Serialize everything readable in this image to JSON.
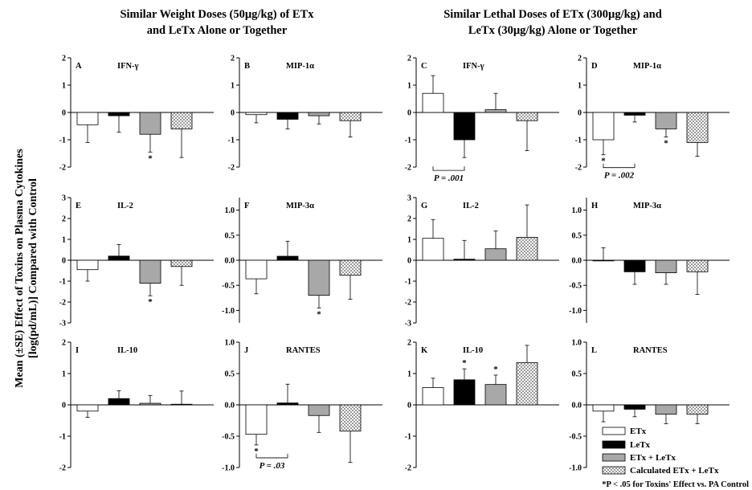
{
  "group_titles": [
    {
      "lines": [
        "Similar Weight Doses (50µg/kg) of ETx",
        "and LeTx  Alone or Together"
      ]
    },
    {
      "lines": [
        "Similar Lethal Doses of ETx (300µg/kg) and",
        "LeTx (30µg/kg) Alone or Together"
      ]
    }
  ],
  "ylabel_lines": [
    "Mean (±SE) Effect of Toxins on Plasma Cytokines",
    "[log(pd/mL)] Compared with Control"
  ],
  "legend": {
    "items": [
      "ETx",
      "LeTx",
      "ETx + LeTx",
      "Calculated ETx + LeTx"
    ],
    "footnote": "*P < .05 for Toxins' Effect vs. PA Control"
  },
  "colors": {
    "etx": "#ffffff",
    "letx": "#000000",
    "combined": "#a8a8a8",
    "calculated": "pattern-checker-light-gray",
    "axis": "#000000"
  },
  "chart_data": [
    {
      "panel": "A",
      "cytokine": "IFN-γ",
      "type": "bar",
      "ylim": [
        -2,
        2
      ],
      "ticks": [
        "-2",
        "-1",
        "0",
        "1",
        "2"
      ],
      "series": [
        {
          "name": "ETx",
          "value": -0.45,
          "err": 0.65
        },
        {
          "name": "LeTx",
          "value": -0.12,
          "err": 0.6
        },
        {
          "name": "ETx + LeTx",
          "value": -0.8,
          "err": 0.65
        },
        {
          "name": "Calculated ETx + LeTx",
          "value": -0.6,
          "err": 1.05
        }
      ],
      "stars": [
        2
      ],
      "pvalue": null
    },
    {
      "panel": "B",
      "cytokine": "MIP-1α",
      "type": "bar",
      "ylim": [
        -2,
        2
      ],
      "ticks": [
        "-2",
        "-1",
        "0",
        "1",
        "2"
      ],
      "series": [
        {
          "name": "ETx",
          "value": -0.08,
          "err": 0.3
        },
        {
          "name": "LeTx",
          "value": -0.25,
          "err": 0.35
        },
        {
          "name": "ETx + LeTx",
          "value": -0.12,
          "err": 0.3
        },
        {
          "name": "Calculated ETx + LeTx",
          "value": -0.3,
          "err": 0.6
        }
      ],
      "stars": [],
      "pvalue": null
    },
    {
      "panel": "C",
      "cytokine": "IFN-γ",
      "type": "bar",
      "ylim": [
        -2,
        2
      ],
      "ticks": [
        "-2",
        "-1",
        "0",
        "1",
        "2"
      ],
      "series": [
        {
          "name": "ETx",
          "value": 0.7,
          "err": 0.65
        },
        {
          "name": "LeTx",
          "value": -1.0,
          "err": 0.65
        },
        {
          "name": "ETx + LeTx",
          "value": 0.1,
          "err": 0.6
        },
        {
          "name": "Calculated ETx + LeTx",
          "value": -0.3,
          "err": 1.1
        }
      ],
      "stars": [],
      "pvalue": {
        "label": "P = .001",
        "from": 0,
        "to": 1
      }
    },
    {
      "panel": "D",
      "cytokine": "MIP-1α",
      "type": "bar",
      "ylim": [
        -2,
        2
      ],
      "ticks": [
        "-2",
        "-1",
        "0",
        "1",
        "2"
      ],
      "series": [
        {
          "name": "ETx",
          "value": -1.0,
          "err": 0.55
        },
        {
          "name": "LeTx",
          "value": -0.1,
          "err": 0.25
        },
        {
          "name": "ETx + LeTx",
          "value": -0.6,
          "err": 0.3
        },
        {
          "name": "Calculated ETx + LeTx",
          "value": -1.1,
          "err": 0.5
        }
      ],
      "stars": [
        0,
        2
      ],
      "pvalue": {
        "label": "P = .002",
        "from": 0,
        "to": 1
      }
    },
    {
      "panel": "E",
      "cytokine": "IL-2",
      "type": "bar",
      "ylim": [
        -3,
        3
      ],
      "ticks": [
        "-3",
        "-2",
        "-1",
        "0",
        "1",
        "2",
        "3"
      ],
      "series": [
        {
          "name": "ETx",
          "value": -0.45,
          "err": 0.55
        },
        {
          "name": "LeTx",
          "value": 0.2,
          "err": 0.55
        },
        {
          "name": "ETx + LeTx",
          "value": -1.1,
          "err": 0.6
        },
        {
          "name": "Calculated ETx + LeTx",
          "value": -0.3,
          "err": 0.9
        }
      ],
      "stars": [
        2
      ],
      "pvalue": null
    },
    {
      "panel": "F",
      "cytokine": "MIP-3α",
      "type": "bar",
      "ylim": [
        -1.25,
        1.25
      ],
      "ticks": [
        "-1.0",
        "-0.5",
        "0.0",
        "0.5",
        "1.0"
      ],
      "series": [
        {
          "name": "ETx",
          "value": -0.37,
          "err": 0.3
        },
        {
          "name": "LeTx",
          "value": 0.08,
          "err": 0.3
        },
        {
          "name": "ETx + LeTx",
          "value": -0.7,
          "err": 0.25
        },
        {
          "name": "Calculated ETx + LeTx",
          "value": -0.3,
          "err": 0.48
        }
      ],
      "stars": [
        2
      ],
      "pvalue": null
    },
    {
      "panel": "G",
      "cytokine": "IL-2",
      "type": "bar",
      "ylim": [
        -3,
        3
      ],
      "ticks": [
        "-3",
        "-2",
        "-1",
        "0",
        "1",
        "2",
        "3"
      ],
      "series": [
        {
          "name": "ETx",
          "value": 1.05,
          "err": 0.9
        },
        {
          "name": "LeTx",
          "value": 0.05,
          "err": 0.9
        },
        {
          "name": "ETx + LeTx",
          "value": 0.55,
          "err": 0.85
        },
        {
          "name": "Calculated ETx + LeTx",
          "value": 1.1,
          "err": 1.55
        }
      ],
      "stars": [],
      "pvalue": null
    },
    {
      "panel": "H",
      "cytokine": "MIP-3α",
      "type": "bar",
      "ylim": [
        -1.25,
        1.25
      ],
      "ticks": [
        "-1.0",
        "-0.5",
        "0.0",
        "0.5",
        "1.0"
      ],
      "series": [
        {
          "name": "ETx",
          "value": 0.0,
          "err": 0.25
        },
        {
          "name": "LeTx",
          "value": -0.23,
          "err": 0.25
        },
        {
          "name": "ETx + LeTx",
          "value": -0.25,
          "err": 0.23
        },
        {
          "name": "Calculated ETx + LeTx",
          "value": -0.23,
          "err": 0.45
        }
      ],
      "stars": [],
      "pvalue": null
    },
    {
      "panel": "I",
      "cytokine": "IL-10",
      "type": "bar",
      "ylim": [
        -2,
        2
      ],
      "ticks": [
        "-2",
        "-1",
        "0",
        "1",
        "2"
      ],
      "series": [
        {
          "name": "ETx",
          "value": -0.2,
          "err": 0.2
        },
        {
          "name": "LeTx",
          "value": 0.2,
          "err": 0.25
        },
        {
          "name": "ETx + LeTx",
          "value": 0.05,
          "err": 0.25
        },
        {
          "name": "Calculated ETx + LeTx",
          "value": 0.02,
          "err": 0.42
        }
      ],
      "stars": [],
      "pvalue": null
    },
    {
      "panel": "J",
      "cytokine": "RANTES",
      "type": "bar",
      "ylim": [
        -1,
        1
      ],
      "ticks": [
        "-1.0",
        "-0.5",
        "0.0",
        "0.5",
        "1.0"
      ],
      "series": [
        {
          "name": "ETx",
          "value": -0.47,
          "err": 0.17
        },
        {
          "name": "LeTx",
          "value": 0.03,
          "err": 0.3
        },
        {
          "name": "ETx + LeTx",
          "value": -0.17,
          "err": 0.27
        },
        {
          "name": "Calculated ETx + LeTx",
          "value": -0.42,
          "err": 0.5
        }
      ],
      "stars": [
        0
      ],
      "pvalue": {
        "label": "P = .03",
        "from": 0,
        "to": 1
      }
    },
    {
      "panel": "K",
      "cytokine": "IL-10",
      "type": "bar",
      "ylim": [
        -2,
        2
      ],
      "ticks": [
        "-2",
        "-1",
        "0",
        "1",
        "2"
      ],
      "series": [
        {
          "name": "ETx",
          "value": 0.55,
          "err": 0.3
        },
        {
          "name": "LeTx",
          "value": 0.8,
          "err": 0.35
        },
        {
          "name": "ETx + LeTx",
          "value": 0.65,
          "err": 0.3
        },
        {
          "name": "Calculated ETx + LeTx",
          "value": 1.35,
          "err": 0.55
        }
      ],
      "stars": [
        1,
        2
      ],
      "pvalue": null
    },
    {
      "panel": "L",
      "cytokine": "RANTES",
      "type": "bar",
      "ylim": [
        -1,
        1
      ],
      "ticks": [
        "-1.0",
        "-0.5",
        "0.0",
        "0.5",
        "1.0"
      ],
      "series": [
        {
          "name": "ETx",
          "value": -0.1,
          "err": 0.17
        },
        {
          "name": "LeTx",
          "value": -0.07,
          "err": 0.12
        },
        {
          "name": "ETx + LeTx",
          "value": -0.15,
          "err": 0.15
        },
        {
          "name": "Calculated ETx + LeTx",
          "value": -0.15,
          "err": 0.15
        }
      ],
      "stars": [],
      "pvalue": null
    }
  ]
}
